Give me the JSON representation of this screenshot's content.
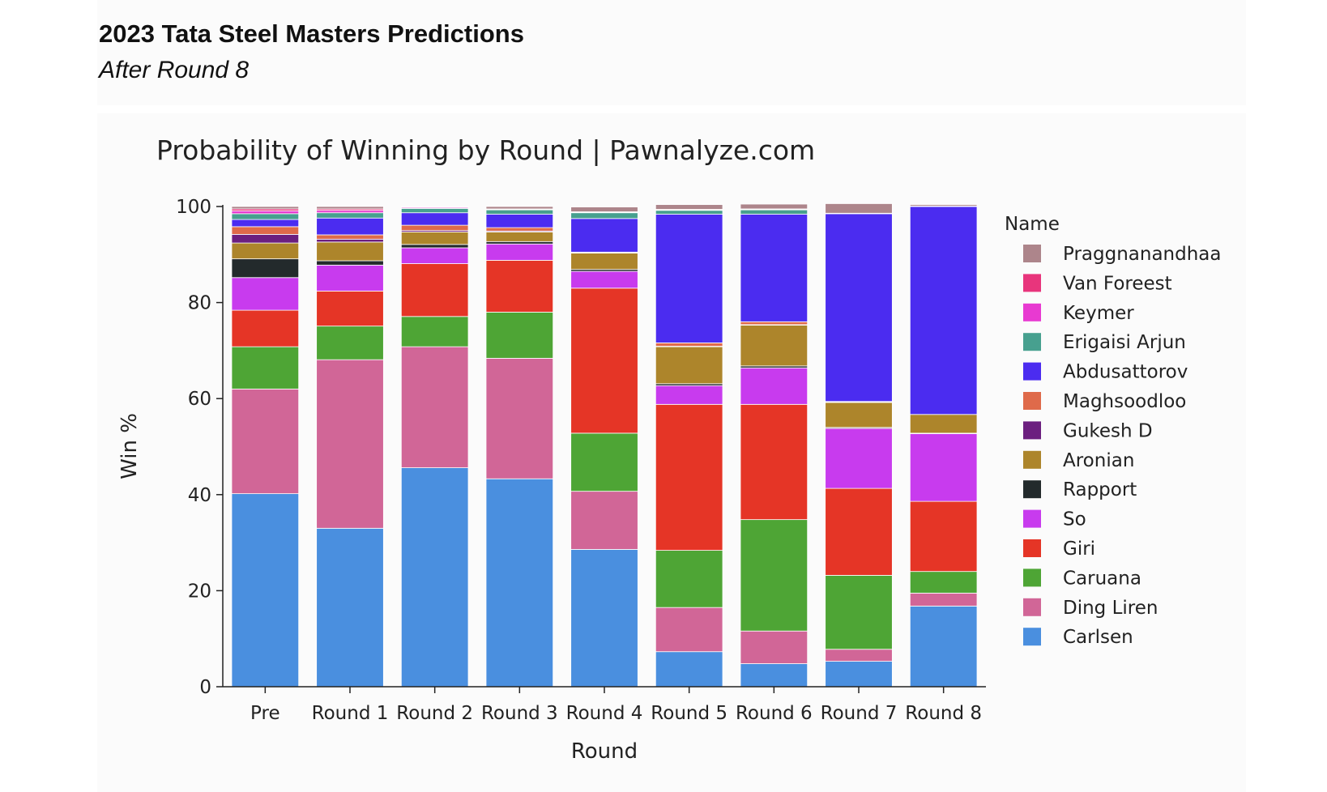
{
  "page": {
    "title": "2023 Tata Steel Masters Predictions",
    "subtitle": "After Round 8"
  },
  "chart_data": {
    "type": "bar",
    "stacked": true,
    "title": "Probability of Winning by Round | Pawnalyze.com",
    "xlabel": "Round",
    "ylabel": "Win %",
    "ylim": [
      0,
      100
    ],
    "yticks": [
      0,
      20,
      40,
      60,
      80,
      100
    ],
    "legend_title": "Name",
    "legend_position": "right",
    "categories": [
      "Pre",
      "Round 1",
      "Round 2",
      "Round 3",
      "Round 4",
      "Round 5",
      "Round 6",
      "Round 7",
      "Round 8"
    ],
    "series": [
      {
        "name": "Carlsen",
        "color": "#4a8fdf",
        "values": [
          40.2,
          33.0,
          45.6,
          43.3,
          28.6,
          7.3,
          4.8,
          5.3,
          16.8
        ]
      },
      {
        "name": "Ding Liren",
        "color": "#d16697",
        "values": [
          21.8,
          35.1,
          25.2,
          25.1,
          12.1,
          9.2,
          6.8,
          2.5,
          2.7
        ]
      },
      {
        "name": "Caruana",
        "color": "#4ea535",
        "values": [
          8.8,
          7.0,
          6.3,
          9.6,
          12.1,
          11.9,
          23.2,
          15.4,
          4.5
        ]
      },
      {
        "name": "Giri",
        "color": "#e53526",
        "values": [
          7.6,
          7.3,
          11.0,
          10.8,
          30.2,
          30.4,
          24.0,
          18.1,
          14.6
        ]
      },
      {
        "name": "So",
        "color": "#c83bee",
        "values": [
          6.8,
          5.4,
          3.3,
          3.4,
          3.5,
          3.9,
          7.6,
          12.5,
          14.1
        ]
      },
      {
        "name": "Rapport",
        "color": "#232a2c",
        "values": [
          3.9,
          0.9,
          0.7,
          0.5,
          0.4,
          0.4,
          0.4,
          0.2,
          0.1
        ]
      },
      {
        "name": "Aronian",
        "color": "#ad852b",
        "values": [
          3.3,
          3.9,
          2.6,
          2.0,
          3.4,
          7.7,
          8.5,
          5.2,
          3.9
        ]
      },
      {
        "name": "Gukesh D",
        "color": "#6c1f7f",
        "values": [
          1.8,
          0.6,
          0.3,
          0.2,
          0.1,
          0.1,
          0.1,
          0.1,
          0.0
        ]
      },
      {
        "name": "Maghsoodloo",
        "color": "#df6a4a",
        "values": [
          1.6,
          0.9,
          1.1,
          0.7,
          0.1,
          0.7,
          0.6,
          0.1,
          0.0
        ]
      },
      {
        "name": "Abdusattorov",
        "color": "#4b2cf0",
        "values": [
          1.5,
          3.5,
          2.6,
          2.8,
          7.0,
          26.8,
          22.4,
          39.1,
          43.3
        ]
      },
      {
        "name": "Erigaisi Arjun",
        "color": "#47a08f",
        "values": [
          1.2,
          1.1,
          0.9,
          0.9,
          1.2,
          0.8,
          0.9,
          0.1,
          0.1
        ]
      },
      {
        "name": "Keymer",
        "color": "#e83ad1",
        "values": [
          0.6,
          0.5,
          0.2,
          0.1,
          0.1,
          0.1,
          0.1,
          0.0,
          0.0
        ]
      },
      {
        "name": "Van Foreest",
        "color": "#e8357c",
        "values": [
          0.4,
          0.3,
          0.1,
          0.1,
          0.1,
          0.1,
          0.1,
          0.0,
          0.0
        ]
      },
      {
        "name": "Praggnanandhaa",
        "color": "#ad858b",
        "values": [
          0.5,
          0.5,
          0.1,
          0.5,
          1.0,
          1.0,
          1.0,
          2.0,
          0.3
        ]
      }
    ]
  }
}
